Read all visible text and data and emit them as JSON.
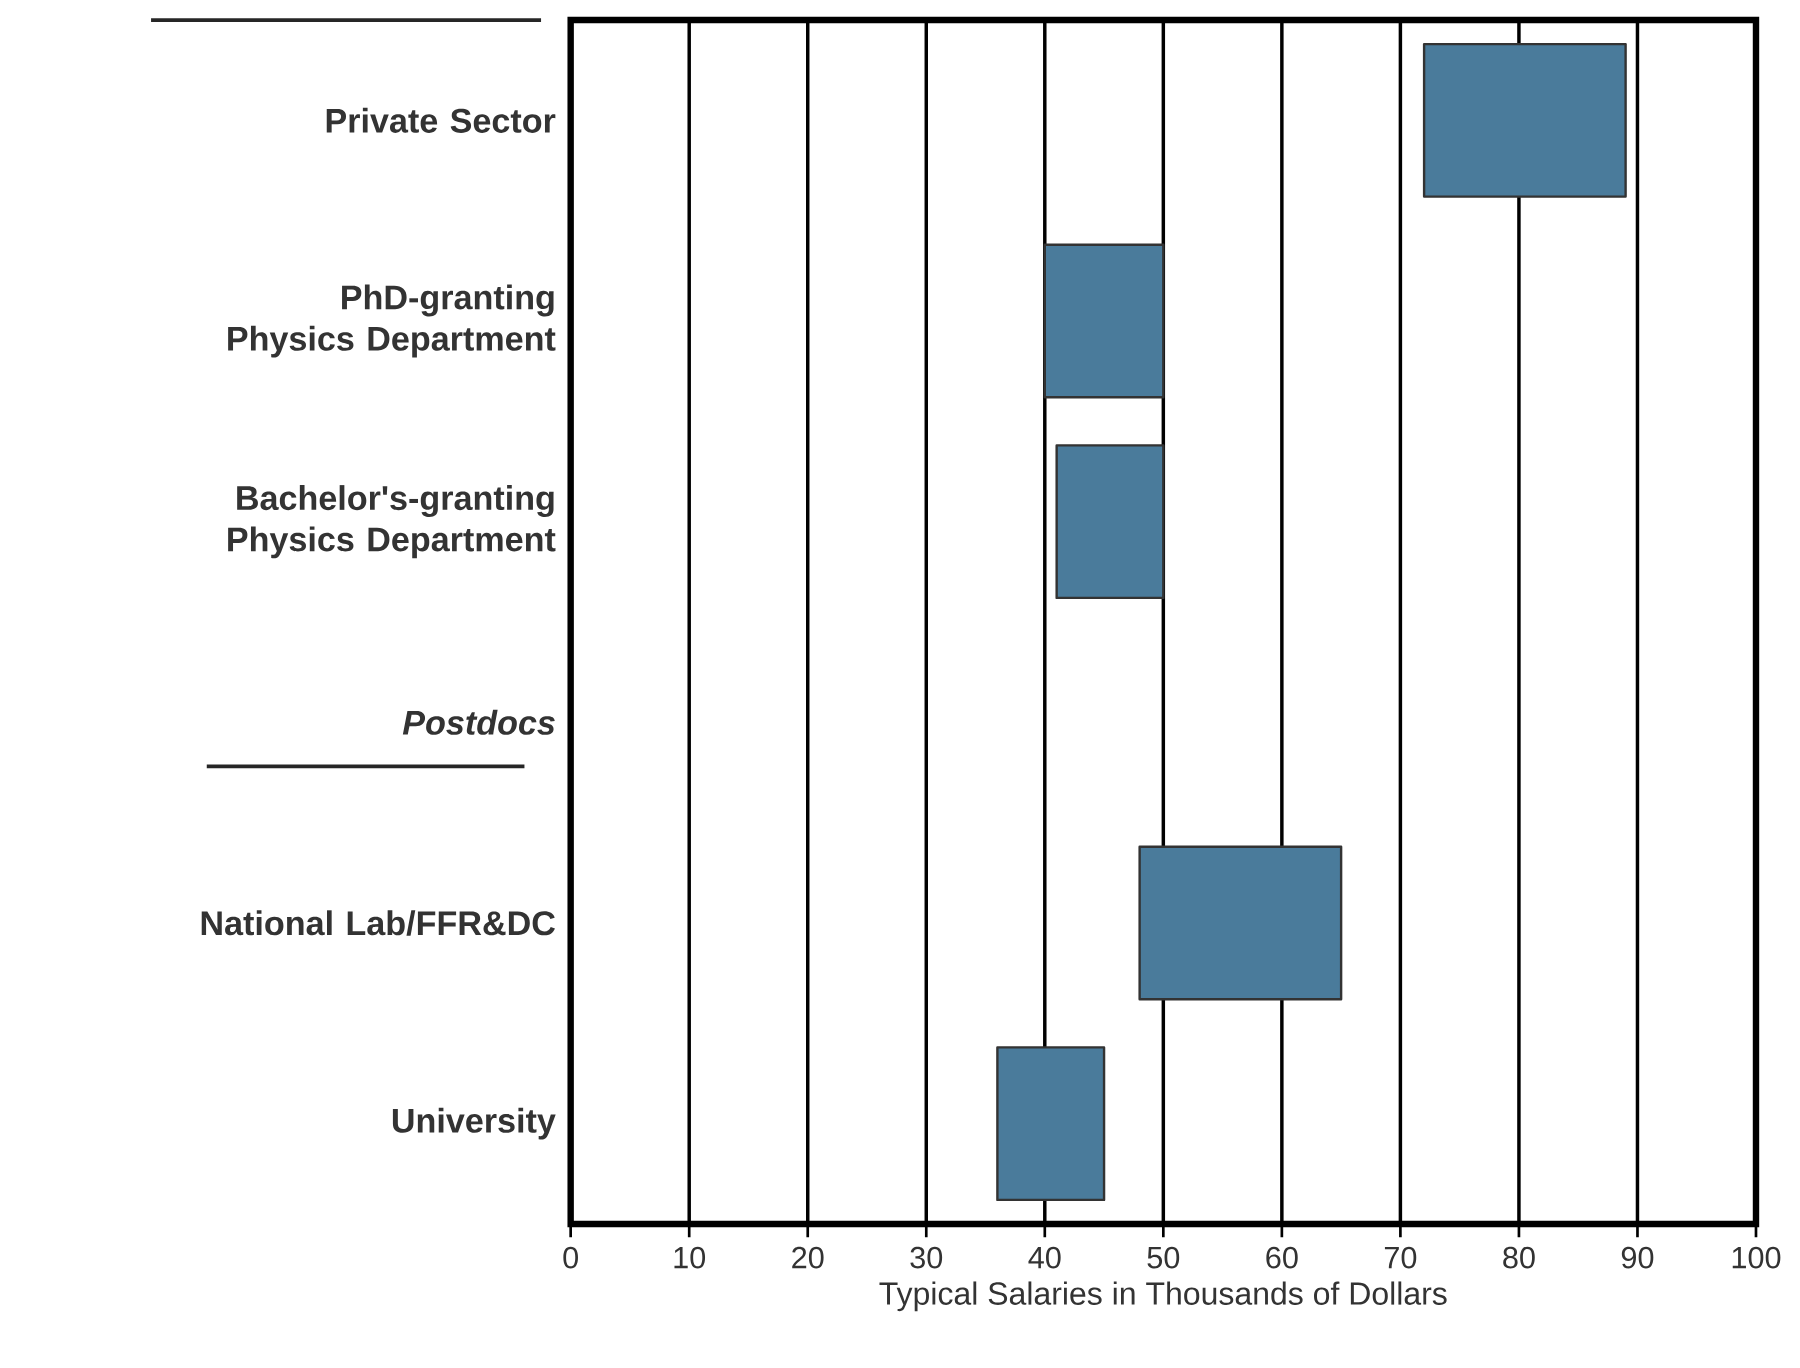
{
  "chart_data": {
    "type": "bar",
    "orientation": "horizontal",
    "xlabel": "Typical Salaries in Thousands of Dollars",
    "categories": [
      "Private Sector",
      "PhD-granting Physics Department",
      "Bachelor's-granting Physics Department",
      "Postdocs",
      "National Lab/FFR&DC",
      "University"
    ],
    "base": [
      72,
      40,
      41,
      null,
      48,
      36
    ],
    "values": [
      17,
      10,
      9,
      null,
      17,
      9
    ],
    "color": "#4a7b9b",
    "xlim": [
      0,
      100
    ],
    "xticks": [
      0,
      10,
      20,
      30,
      40,
      50,
      60,
      70,
      80,
      90,
      100
    ],
    "grid": "x"
  }
}
